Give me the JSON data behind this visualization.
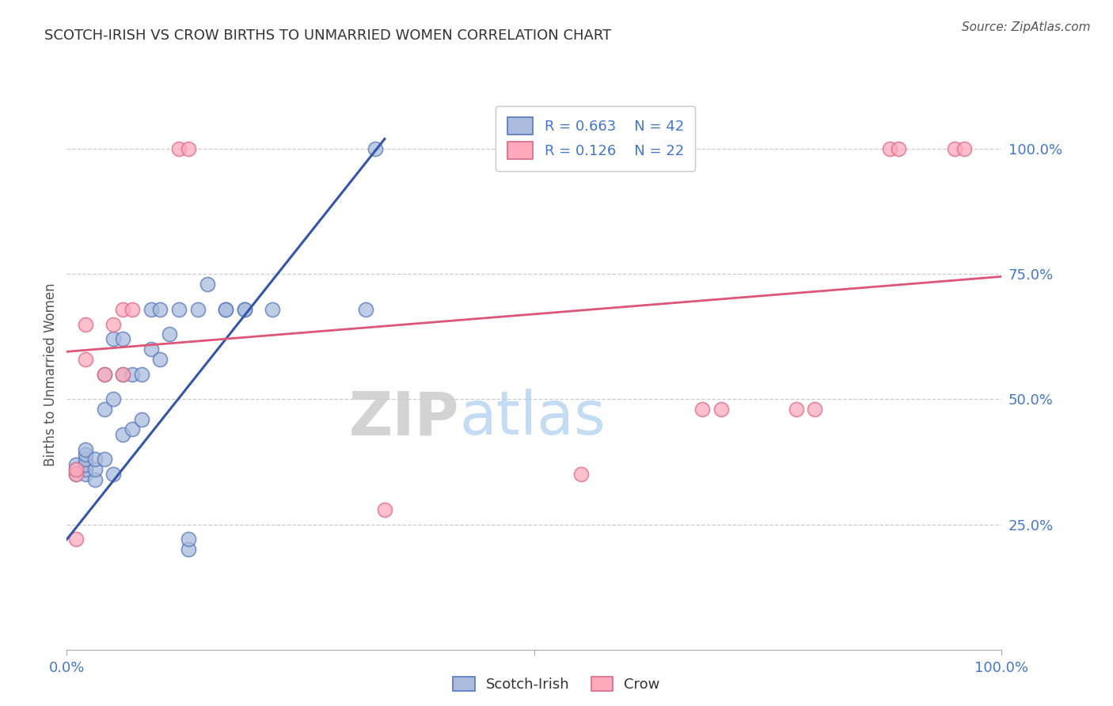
{
  "title": "SCOTCH-IRISH VS CROW BIRTHS TO UNMARRIED WOMEN CORRELATION CHART",
  "source": "Source: ZipAtlas.com",
  "ylabel": "Births to Unmarried Women",
  "watermark_zip": "ZIP",
  "watermark_atlas": "atlas",
  "legend1_r": "0.663",
  "legend1_n": "42",
  "legend2_r": "0.126",
  "legend2_n": "22",
  "scotch_irish_color": "#aabbdd",
  "scotch_irish_edge_color": "#5577bb",
  "crow_color": "#ffaabb",
  "crow_edge_color": "#dd6688",
  "blue_line_color": "#3355aa",
  "pink_line_color": "#dd5577",
  "background": "#ffffff",
  "grid_color": "#cccccc",
  "tick_color": "#4477cc",
  "scotch_irish_x": [
    0.01,
    0.01,
    0.01,
    0.02,
    0.02,
    0.02,
    0.02,
    0.02,
    0.02,
    0.03,
    0.03,
    0.03,
    0.04,
    0.04,
    0.04,
    0.05,
    0.05,
    0.05,
    0.06,
    0.06,
    0.06,
    0.07,
    0.07,
    0.08,
    0.08,
    0.09,
    0.09,
    0.1,
    0.1,
    0.11,
    0.12,
    0.13,
    0.13,
    0.14,
    0.15,
    0.17,
    0.17,
    0.19,
    0.19,
    0.22,
    0.32,
    0.33
  ],
  "scotch_irish_y": [
    0.35,
    0.36,
    0.37,
    0.35,
    0.36,
    0.37,
    0.38,
    0.39,
    0.4,
    0.34,
    0.36,
    0.38,
    0.38,
    0.48,
    0.55,
    0.35,
    0.5,
    0.62,
    0.43,
    0.55,
    0.62,
    0.44,
    0.55,
    0.46,
    0.55,
    0.6,
    0.68,
    0.58,
    0.68,
    0.63,
    0.68,
    0.2,
    0.22,
    0.68,
    0.73,
    0.68,
    0.68,
    0.68,
    0.68,
    0.68,
    0.68,
    1.0
  ],
  "crow_x": [
    0.01,
    0.01,
    0.01,
    0.02,
    0.02,
    0.04,
    0.05,
    0.06,
    0.06,
    0.07,
    0.12,
    0.13,
    0.55,
    0.68,
    0.7,
    0.78,
    0.8,
    0.88,
    0.89,
    0.95,
    0.96,
    0.34
  ],
  "crow_y": [
    0.35,
    0.36,
    0.22,
    0.58,
    0.65,
    0.55,
    0.65,
    0.68,
    0.55,
    0.68,
    1.0,
    1.0,
    0.35,
    0.48,
    0.48,
    0.48,
    0.48,
    1.0,
    1.0,
    1.0,
    1.0,
    0.28
  ],
  "xlim": [
    0.0,
    1.0
  ],
  "ylim": [
    0.0,
    1.1
  ],
  "ytick_positions": [
    0.25,
    0.5,
    0.75,
    1.0
  ],
  "ytick_labels": [
    "25.0%",
    "50.0%",
    "75.0%",
    "100.0%"
  ],
  "blue_trend_x0": 0.0,
  "blue_trend_y0": 0.22,
  "blue_trend_x1": 0.34,
  "blue_trend_y1": 1.02,
  "pink_trend_x0": 0.0,
  "pink_trend_y0": 0.595,
  "pink_trend_x1": 1.0,
  "pink_trend_y1": 0.745
}
